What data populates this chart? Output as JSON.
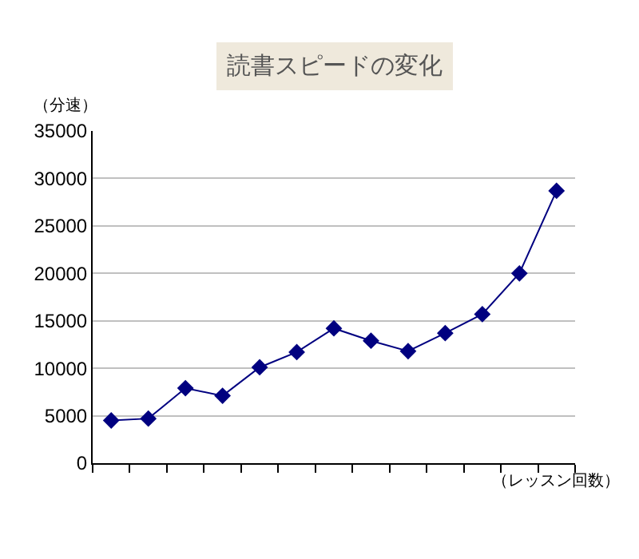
{
  "chart_data": {
    "type": "line",
    "title": "読書スピードの変化",
    "ylabel": "（分速）",
    "xlabel": "（レッスン回数）",
    "categories": [
      null,
      null,
      null,
      null,
      null,
      null,
      null,
      null,
      null,
      null,
      null,
      null,
      null
    ],
    "series": [
      {
        "color": "#000080",
        "values": [
          4500,
          4700,
          7900,
          7100,
          10100,
          11700,
          14200,
          12900,
          11800,
          13700,
          15700,
          20000,
          28700
        ]
      }
    ],
    "ylim": [
      0,
      35000
    ],
    "yticks": [
      0,
      5000,
      10000,
      15000,
      20000,
      25000,
      30000,
      35000
    ],
    "grid": "y",
    "marker": "diamond",
    "line_style": "solid",
    "tick_labels": "y",
    "legend": false
  }
}
